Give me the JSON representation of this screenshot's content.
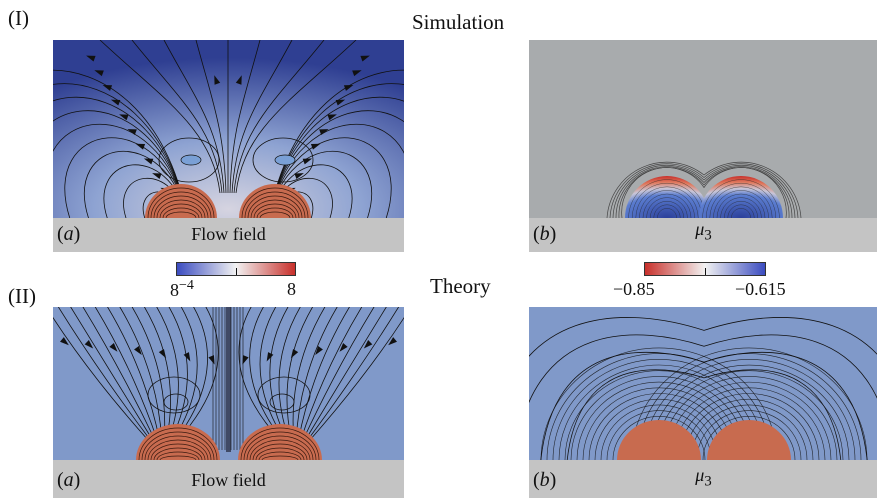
{
  "labels": {
    "row1": "(I)",
    "row2": "(II)",
    "simulation": "Simulation",
    "theory": "Theory"
  },
  "panels": {
    "sim_flow": {
      "tag": "a",
      "caption": "Flow field"
    },
    "sim_mu": {
      "tag": "b",
      "caption_base": "μ",
      "caption_sub": "3"
    },
    "theory_flow": {
      "tag": "a",
      "caption": "Flow field"
    },
    "theory_mu": {
      "tag": "b",
      "caption_base": "μ",
      "caption_sub": "3"
    }
  },
  "colorbars": {
    "flow": {
      "min_label": "8",
      "min_exp": "−4",
      "max_label": "8",
      "colors": [
        "#3b4cc0",
        "#f2f2f2",
        "#c8302b"
      ]
    },
    "mu": {
      "min_label": "−0.85",
      "max_label": "−0.615",
      "colors": [
        "#c8302b",
        "#f2f2f2",
        "#3b4cc0"
      ]
    }
  },
  "colors": {
    "sim_bg_top": "#2f3f92",
    "sim_bg_mid": "#8ea3d2",
    "sim_bg_glow": "#d6d4e0",
    "droplet": "#c86b4f",
    "theory_bg": "#8099c9",
    "mu_bg": "#a8abad",
    "floor": "#c4c4c4"
  }
}
